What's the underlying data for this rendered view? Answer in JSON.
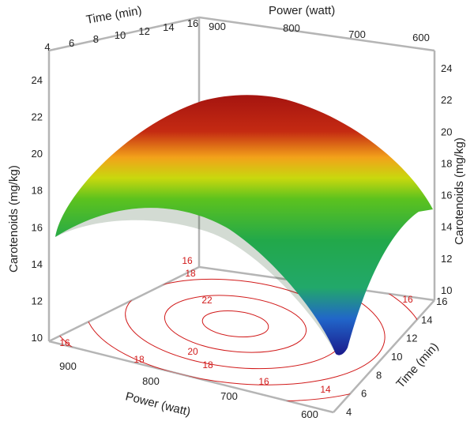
{
  "chart_data": {
    "type": "surface",
    "title": "",
    "xlabel": "Power (watt)",
    "ylabel": "Time (min)",
    "zlabel": "Carotenoids (mg/kg)",
    "x_ticks": [
      "900",
      "800",
      "700",
      "600"
    ],
    "y_ticks": [
      "4",
      "6",
      "8",
      "10",
      "12",
      "14",
      "16"
    ],
    "z_ticks": [
      "10",
      "12",
      "14",
      "16",
      "18",
      "20",
      "22",
      "24"
    ],
    "x_range": [
      600,
      900
    ],
    "y_range": [
      4,
      16
    ],
    "zlim": [
      10,
      24
    ],
    "surface_peak": {
      "power": 800,
      "time": 10,
      "carotenoids": 23
    },
    "corner_values": [
      {
        "power": 900,
        "time": 4,
        "carotenoids": 15.5
      },
      {
        "power": 900,
        "time": 16,
        "carotenoids": 16.5
      },
      {
        "power": 600,
        "time": 16,
        "carotenoids": 15.8
      },
      {
        "power": 600,
        "time": 4,
        "carotenoids": 10.5
      }
    ],
    "contour_levels": [
      "14",
      "16",
      "18",
      "20",
      "22"
    ],
    "contour_labels": [
      "16",
      "18",
      "22",
      "20",
      "18",
      "18",
      "16",
      "14",
      "16",
      "16"
    ],
    "colormap": [
      "#1a1a8c",
      "#2166c9",
      "#22a84a",
      "#5cc21e",
      "#c8d80e",
      "#f2a21a",
      "#d23a12",
      "#a51410"
    ],
    "contour_color": "#d11a1a",
    "grid": false
  }
}
